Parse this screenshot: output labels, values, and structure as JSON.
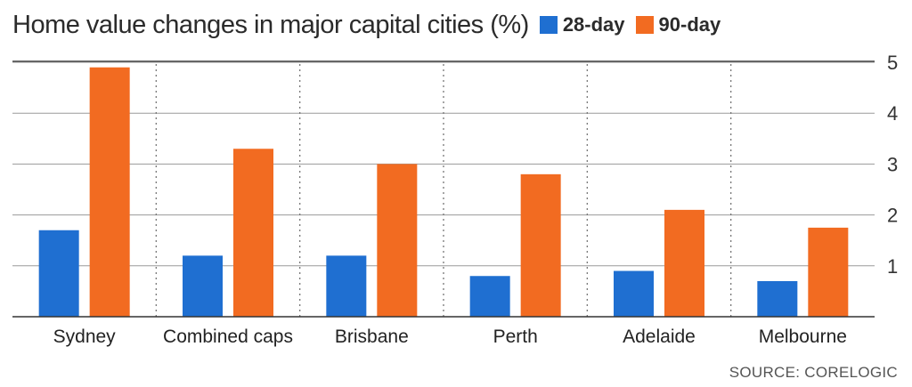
{
  "chart_data": {
    "type": "bar",
    "title": "Home value changes in major capital cities (%)",
    "categories": [
      "Sydney",
      "Combined caps",
      "Brisbane",
      "Perth",
      "Adelaide",
      "Melbourne"
    ],
    "series": [
      {
        "name": "28-day",
        "color": "#1f6fd1",
        "values": [
          1.7,
          1.2,
          1.2,
          0.8,
          0.9,
          0.7
        ]
      },
      {
        "name": "90-day",
        "color": "#f26b21",
        "values": [
          4.9,
          3.3,
          3.0,
          2.8,
          2.1,
          1.75
        ]
      }
    ],
    "yticks": [
      1,
      2,
      3,
      4,
      5
    ],
    "ylim": [
      0,
      5
    ],
    "grid": true,
    "legend_position": "top"
  },
  "source": "SOURCE: CORELOGIC"
}
